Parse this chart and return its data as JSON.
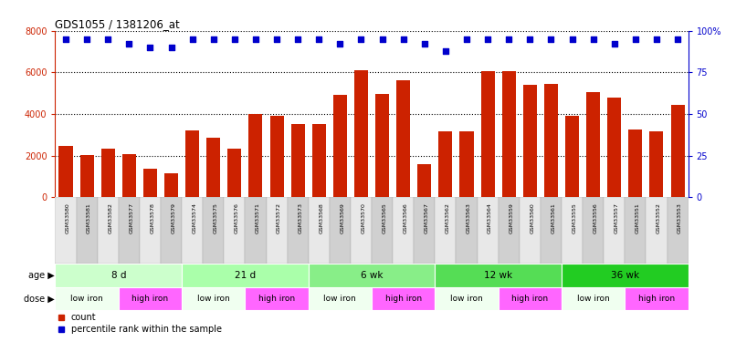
{
  "title": "GDS1055 / 1381206_at",
  "samples": [
    "GSM33580",
    "GSM33581",
    "GSM33582",
    "GSM33577",
    "GSM33578",
    "GSM33579",
    "GSM33574",
    "GSM33575",
    "GSM33576",
    "GSM33571",
    "GSM33572",
    "GSM33573",
    "GSM33568",
    "GSM33569",
    "GSM33570",
    "GSM33565",
    "GSM33566",
    "GSM33567",
    "GSM33562",
    "GSM33563",
    "GSM33564",
    "GSM33559",
    "GSM33560",
    "GSM33561",
    "GSM33555",
    "GSM33556",
    "GSM33557",
    "GSM33551",
    "GSM33552",
    "GSM33553"
  ],
  "counts": [
    2450,
    2020,
    2330,
    2060,
    1380,
    1150,
    3200,
    2850,
    2330,
    4000,
    3900,
    3500,
    3500,
    4900,
    6100,
    4950,
    5600,
    1580,
    3150,
    3150,
    6050,
    6050,
    5380,
    5450,
    3900,
    5050,
    4800,
    3250,
    3150,
    4450
  ],
  "percentile": [
    95,
    95,
    95,
    92,
    90,
    90,
    95,
    95,
    95,
    95,
    95,
    95,
    95,
    92,
    95,
    95,
    95,
    92,
    88,
    95,
    95,
    95,
    95,
    95,
    95,
    95,
    92,
    95,
    95,
    95
  ],
  "age_groups": [
    {
      "label": "8 d",
      "start": 0,
      "end": 6
    },
    {
      "label": "21 d",
      "start": 6,
      "end": 12
    },
    {
      "label": "6 wk",
      "start": 12,
      "end": 18
    },
    {
      "label": "12 wk",
      "start": 18,
      "end": 24
    },
    {
      "label": "36 wk",
      "start": 24,
      "end": 30
    }
  ],
  "age_colors": [
    "#ccffcc",
    "#aaffaa",
    "#88ee88",
    "#55dd55",
    "#22cc22"
  ],
  "dose_groups": [
    {
      "label": "low iron",
      "start": 0,
      "end": 3,
      "color": "#f0fff0"
    },
    {
      "label": "high iron",
      "start": 3,
      "end": 6,
      "color": "#ff66ff"
    },
    {
      "label": "low iron",
      "start": 6,
      "end": 9,
      "color": "#f0fff0"
    },
    {
      "label": "high iron",
      "start": 9,
      "end": 12,
      "color": "#ff66ff"
    },
    {
      "label": "low iron",
      "start": 12,
      "end": 15,
      "color": "#f0fff0"
    },
    {
      "label": "high iron",
      "start": 15,
      "end": 18,
      "color": "#ff66ff"
    },
    {
      "label": "low iron",
      "start": 18,
      "end": 21,
      "color": "#f0fff0"
    },
    {
      "label": "high iron",
      "start": 21,
      "end": 24,
      "color": "#ff66ff"
    },
    {
      "label": "low iron",
      "start": 24,
      "end": 27,
      "color": "#f0fff0"
    },
    {
      "label": "high iron",
      "start": 27,
      "end": 30,
      "color": "#ff66ff"
    }
  ],
  "bar_color": "#cc2200",
  "dot_color": "#0000cc",
  "ylim_left": [
    0,
    8000
  ],
  "ylim_right": [
    0,
    100
  ],
  "yticks_left": [
    0,
    2000,
    4000,
    6000,
    8000
  ],
  "yticks_right": [
    0,
    25,
    50,
    75,
    100
  ],
  "background_color": "#ffffff",
  "label_row_color": "#dddddd"
}
